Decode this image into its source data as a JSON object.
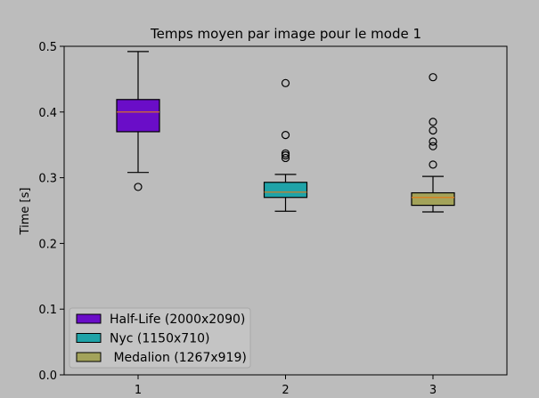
{
  "chart_data": {
    "type": "box",
    "title": "Temps moyen par image pour le mode 1",
    "xlabel": "",
    "ylabel": "Time [s]",
    "ylim": [
      0,
      0.5
    ],
    "yticks": [
      "0.0",
      "0.1",
      "0.2",
      "0.3",
      "0.4",
      "0.5"
    ],
    "categories": [
      "1",
      "2",
      "3"
    ],
    "grid": false,
    "legend_position": "bottom-left",
    "series": [
      {
        "name": "Half-Life (2000x2090)",
        "color": "#6a0dc8",
        "median_color": "#e07b1a",
        "whisker_low": 0.308,
        "q1": 0.37,
        "median": 0.4,
        "q3": 0.419,
        "whisker_high": 0.492,
        "outliers": [
          0.286
        ]
      },
      {
        "name": "Nyc (1150x710)",
        "color": "#1fa3a8",
        "median_color": "#e07b1a",
        "whisker_low": 0.249,
        "q1": 0.27,
        "median": 0.278,
        "q3": 0.293,
        "whisker_high": 0.305,
        "outliers": [
          0.33,
          0.334,
          0.337,
          0.365,
          0.444
        ]
      },
      {
        "name": " Medalion (1267x919)",
        "color": "#a3a35a",
        "median_color": "#e07b1a",
        "whisker_low": 0.248,
        "q1": 0.258,
        "median": 0.27,
        "q3": 0.277,
        "whisker_high": 0.302,
        "outliers": [
          0.32,
          0.348,
          0.355,
          0.372,
          0.385,
          0.453
        ]
      }
    ]
  }
}
